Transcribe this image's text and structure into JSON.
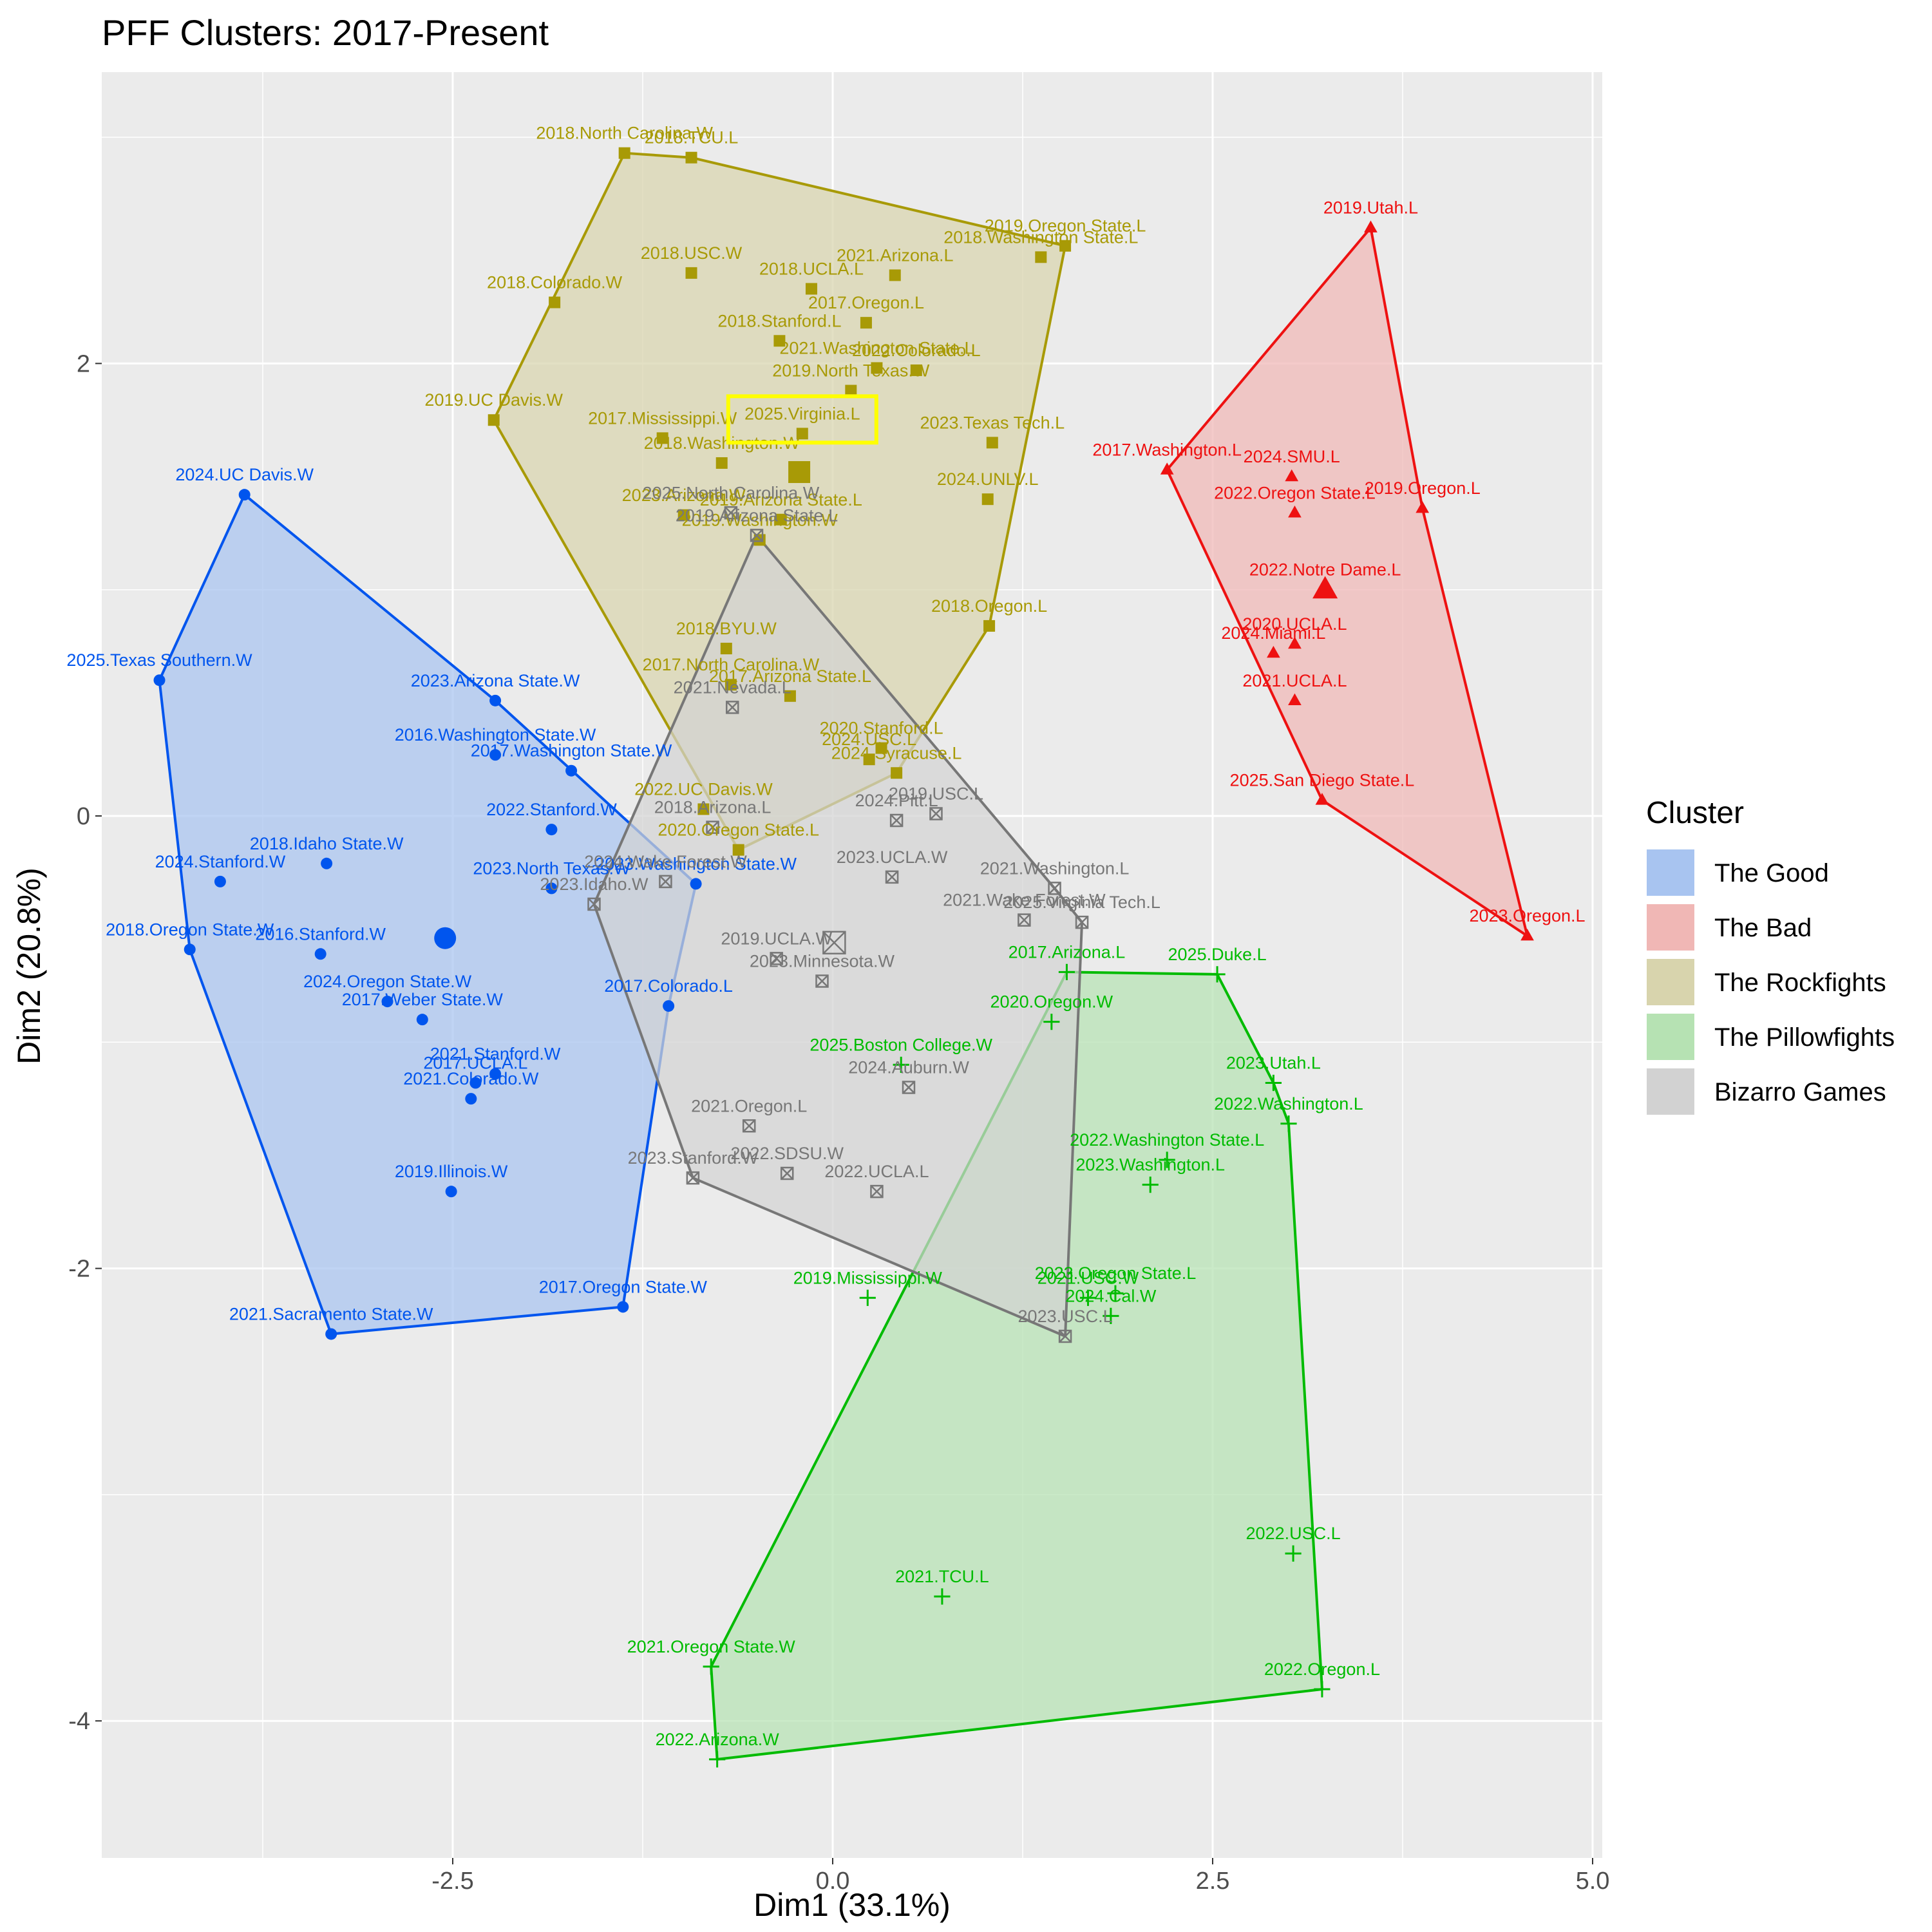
{
  "chart_data": {
    "type": "scatter",
    "title": "PFF Clusters: 2017-Present",
    "xlabel": "Dim1 (33.1%)",
    "ylabel": "Dim2 (20.8%)",
    "xlim": [
      -4.9,
      5.0
    ],
    "ylim": [
      -4.6,
      3.3
    ],
    "xticks": [
      -2.5,
      0.0,
      2.5,
      5.0
    ],
    "xtick_labels": [
      "-2.5",
      "0.0",
      "2.5",
      "5.0"
    ],
    "yticks": [
      -4,
      -2,
      0,
      2
    ],
    "ytick_labels": [
      "-4",
      "-2",
      "0",
      "2"
    ],
    "grid": true,
    "legend": {
      "title": "Cluster",
      "position": "right"
    },
    "highlight": {
      "label": "2025.Virginia.L",
      "color": "#ffff00"
    },
    "clusters": [
      {
        "name": "The Good",
        "color": "#0055ee",
        "fill": "#a8c4f0",
        "shape": "circle",
        "centroid": [
          -2.55,
          -0.54
        ],
        "hull": [
          "2024.UC Davis.W",
          "2023.Arizona State.W",
          "2023.Washington State.W",
          "2017.Colorado.L",
          "2017.Oregon State.W",
          "2021.Sacramento State.W",
          "2018.Oregon State.W",
          "2025.Texas Southern.W"
        ],
        "points": [
          {
            "label": "2024.UC Davis.W",
            "x": -3.87,
            "y": 1.42
          },
          {
            "label": "2025.Texas Southern.W",
            "x": -4.43,
            "y": 0.6
          },
          {
            "label": "2023.Arizona State.W",
            "x": -2.22,
            "y": 0.51
          },
          {
            "label": "2017.Washington State.W",
            "x": -1.72,
            "y": 0.2
          },
          {
            "label": "2016.Washington State.W",
            "x": -2.22,
            "y": 0.27
          },
          {
            "label": "2022.Stanford.W",
            "x": -1.85,
            "y": -0.06
          },
          {
            "label": "2018.Idaho State.W",
            "x": -3.33,
            "y": -0.21
          },
          {
            "label": "2024.Stanford.W",
            "x": -4.03,
            "y": -0.29
          },
          {
            "label": "2023.North Texas.W",
            "x": -1.85,
            "y": -0.32
          },
          {
            "label": "2023.Washington State.W",
            "x": -0.9,
            "y": -0.3
          },
          {
            "label": "2018.Oregon State.W",
            "x": -4.23,
            "y": -0.59
          },
          {
            "label": "2016.Stanford.W",
            "x": -3.37,
            "y": -0.61
          },
          {
            "label": "2024.Oregon State.W",
            "x": -2.93,
            "y": -0.82
          },
          {
            "label": "2017.Weber State.W",
            "x": -2.7,
            "y": -0.9
          },
          {
            "label": "2017.Colorado.L",
            "x": -1.08,
            "y": -0.84
          },
          {
            "label": "2021.Stanford.W",
            "x": -2.22,
            "y": -1.14
          },
          {
            "label": "2017.UCLA.L",
            "x": -2.35,
            "y": -1.18
          },
          {
            "label": "2021.Colorado.W",
            "x": -2.38,
            "y": -1.25
          },
          {
            "label": "2019.Illinois.W",
            "x": -2.51,
            "y": -1.66
          },
          {
            "label": "2017.Oregon State.W",
            "x": -1.38,
            "y": -2.17
          },
          {
            "label": "2021.Sacramento State.W",
            "x": -3.3,
            "y": -2.29
          }
        ]
      },
      {
        "name": "The Bad",
        "color": "#ee1111",
        "fill": "#f0b7b5",
        "shape": "triangle",
        "centroid": [
          3.24,
          1.0
        ],
        "hull": [
          "2019.Utah.L",
          "2019.Oregon.L",
          "2023.Oregon.L",
          "2025.San Diego State.L",
          "2017.Washington.L"
        ],
        "points": [
          {
            "label": "2019.Utah.L",
            "x": 3.54,
            "y": 2.6
          },
          {
            "label": "2017.Washington.L",
            "x": 2.2,
            "y": 1.53
          },
          {
            "label": "2024.SMU.L",
            "x": 3.02,
            "y": 1.5
          },
          {
            "label": "2022.Oregon State.L",
            "x": 3.04,
            "y": 1.34
          },
          {
            "label": "2019.Oregon.L",
            "x": 3.88,
            "y": 1.36
          },
          {
            "label": "2022.Notre Dame.L",
            "x": 3.24,
            "y": 1.0
          },
          {
            "label": "2020.UCLA.L",
            "x": 3.04,
            "y": 0.76
          },
          {
            "label": "2024.Miami.L",
            "x": 2.9,
            "y": 0.72
          },
          {
            "label": "2021.UCLA.L",
            "x": 3.04,
            "y": 0.51
          },
          {
            "label": "2025.San Diego State.L",
            "x": 3.22,
            "y": 0.07
          },
          {
            "label": "2023.Oregon.L",
            "x": 4.57,
            "y": -0.53
          }
        ]
      },
      {
        "name": "The Rockfights",
        "color": "#a89a06",
        "fill": "#d8d4ad",
        "shape": "square",
        "centroid": [
          -0.22,
          1.52
        ],
        "hull": [
          "2018.North Carolina.W",
          "2018.TCU.L",
          "2019.Oregon State.L",
          "2018.Oregon.L",
          "2024.Syracuse.L",
          "2020.Oregon State.L",
          "2019.UC Davis.W"
        ],
        "points": [
          {
            "label": "2018.North Carolina.W",
            "x": -1.37,
            "y": 2.93
          },
          {
            "label": "2018.TCU.L",
            "x": -0.93,
            "y": 2.91
          },
          {
            "label": "2019.Oregon State.L",
            "x": 1.53,
            "y": 2.52
          },
          {
            "label": "2018.Washington State.L",
            "x": 1.37,
            "y": 2.47
          },
          {
            "label": "2018.USC.W",
            "x": -0.93,
            "y": 2.4
          },
          {
            "label": "2021.Arizona.L",
            "x": 0.41,
            "y": 2.39
          },
          {
            "label": "2018.UCLA.L",
            "x": -0.14,
            "y": 2.33
          },
          {
            "label": "2018.Colorado.W",
            "x": -1.83,
            "y": 2.27
          },
          {
            "label": "2017.Oregon.L",
            "x": 0.22,
            "y": 2.18
          },
          {
            "label": "2018.Stanford.L",
            "x": -0.35,
            "y": 2.1
          },
          {
            "label": "2019.North Texas.W",
            "x": 0.12,
            "y": 1.88
          },
          {
            "label": "2022.Colorado.L",
            "x": 0.55,
            "y": 1.97
          },
          {
            "label": "2021.Washington State.L",
            "x": 0.29,
            "y": 1.98
          },
          {
            "label": "2019.UC Davis.W",
            "x": -2.23,
            "y": 1.75
          },
          {
            "label": "2025.Virginia.L",
            "x": -0.2,
            "y": 1.69
          },
          {
            "label": "2017.Mississippi.W",
            "x": -1.12,
            "y": 1.67
          },
          {
            "label": "2023.Texas Tech.L",
            "x": 1.05,
            "y": 1.65
          },
          {
            "label": "2018.Washington.W",
            "x": -0.73,
            "y": 1.56
          },
          {
            "label": "2024.UNLV.L",
            "x": 1.02,
            "y": 1.4
          },
          {
            "label": "2023.Arizona.W",
            "x": -0.98,
            "y": 1.33
          },
          {
            "label": "2019.Arizona State.L",
            "x": -0.34,
            "y": 1.31
          },
          {
            "label": "2019.Washington.W",
            "x": -0.48,
            "y": 1.22
          },
          {
            "label": "2018.Oregon.L",
            "x": 1.03,
            "y": 0.84
          },
          {
            "label": "2018.BYU.W",
            "x": -0.7,
            "y": 0.74
          },
          {
            "label": "2017.North Carolina.W",
            "x": -0.67,
            "y": 0.58
          },
          {
            "label": "2017.Arizona State.L",
            "x": -0.28,
            "y": 0.53
          },
          {
            "label": "2020.Stanford.L",
            "x": 0.32,
            "y": 0.3
          },
          {
            "label": "2024.Syracuse.L",
            "x": 0.42,
            "y": 0.19
          },
          {
            "label": "2024.USC.L",
            "x": 0.24,
            "y": 0.25
          },
          {
            "label": "2022.UC Davis.W",
            "x": -0.85,
            "y": 0.03
          },
          {
            "label": "2020.Oregon State.L",
            "x": -0.62,
            "y": -0.15
          }
        ]
      },
      {
        "name": "The Pillowfights",
        "color": "#00bb00",
        "fill": "#b6e2b3",
        "shape": "plus",
        "centroid": null,
        "hull": [
          "2017.Arizona.L",
          "2025.Duke.L",
          "2023.Utah.L",
          "2022.Washington.L",
          "2022.Oregon.L",
          "2022.Arizona.W",
          "2021.Oregon State.W"
        ],
        "points": [
          {
            "label": "2017.Arizona.L",
            "x": 1.54,
            "y": -0.69
          },
          {
            "label": "2025.Duke.L",
            "x": 2.53,
            "y": -0.7
          },
          {
            "label": "2020.Oregon.W",
            "x": 1.44,
            "y": -0.91
          },
          {
            "label": "2025.Boston College.W",
            "x": 0.45,
            "y": -1.1
          },
          {
            "label": "2023.Utah.L",
            "x": 2.9,
            "y": -1.18
          },
          {
            "label": "2022.Washington.L",
            "x": 3.0,
            "y": -1.36
          },
          {
            "label": "2022.Washington State.L",
            "x": 2.2,
            "y": -1.52
          },
          {
            "label": "2023.Washington.L",
            "x": 2.09,
            "y": -1.63
          },
          {
            "label": "2019.Mississippi.W",
            "x": 0.23,
            "y": -2.13
          },
          {
            "label": "2023.Oregon State.L",
            "x": 1.86,
            "y": -2.11
          },
          {
            "label": "2021.USC.W",
            "x": 1.68,
            "y": -2.13
          },
          {
            "label": "2024.Cal.W",
            "x": 1.83,
            "y": -2.21
          },
          {
            "label": "2022.USC.L",
            "x": 3.03,
            "y": -3.26
          },
          {
            "label": "2021.TCU.L",
            "x": 0.72,
            "y": -3.45
          },
          {
            "label": "2021.Oregon State.W",
            "x": -0.8,
            "y": -3.76
          },
          {
            "label": "2022.Oregon.L",
            "x": 3.22,
            "y": -3.86
          },
          {
            "label": "2022.Arizona.W",
            "x": -0.76,
            "y": -4.17
          }
        ]
      },
      {
        "name": "Bizarro Games",
        "color": "#777777",
        "fill": "#d2d2d2",
        "shape": "square-x",
        "centroid": [
          0.01,
          -0.56
        ],
        "hull": [
          "2019.Arizona State.L",
          "2021.Washington.L",
          "2025.Virginia Tech.L",
          "2023.USC.L",
          "2023.Stanford.W",
          "2023.Idaho.W"
        ],
        "points": [
          {
            "label": "2025.North Carolina.W",
            "x": -0.67,
            "y": 1.34
          },
          {
            "label": "2019.Arizona State.L",
            "x": -0.5,
            "y": 1.24
          },
          {
            "label": "2021.Nevada.L",
            "x": -0.66,
            "y": 0.48
          },
          {
            "label": "2019.USC.L",
            "x": 0.68,
            "y": 0.01
          },
          {
            "label": "2024.Pitt.L",
            "x": 0.42,
            "y": -0.02
          },
          {
            "label": "2018.Arizona.L",
            "x": -0.79,
            "y": -0.05
          },
          {
            "label": "2023.UCLA.W",
            "x": 0.39,
            "y": -0.27
          },
          {
            "label": "2024.Wake Forest.W",
            "x": -1.1,
            "y": -0.29
          },
          {
            "label": "2021.Washington.L",
            "x": 1.46,
            "y": -0.32
          },
          {
            "label": "2023.Idaho.W",
            "x": -1.57,
            "y": -0.39
          },
          {
            "label": "2025.Virginia Tech.L",
            "x": 1.64,
            "y": -0.47
          },
          {
            "label": "2021.Wake Forest.W",
            "x": 1.26,
            "y": -0.46
          },
          {
            "label": "2019.UCLA.W",
            "x": -0.37,
            "y": -0.63
          },
          {
            "label": "2023.Minnesota.W",
            "x": -0.07,
            "y": -0.73
          },
          {
            "label": "2024.Auburn.W",
            "x": 0.5,
            "y": -1.2
          },
          {
            "label": "2021.Oregon.L",
            "x": -0.55,
            "y": -1.37
          },
          {
            "label": "2022.SDSU.W",
            "x": -0.3,
            "y": -1.58
          },
          {
            "label": "2023.Stanford.W",
            "x": -0.92,
            "y": -1.6
          },
          {
            "label": "2022.UCLA.L",
            "x": 0.29,
            "y": -1.66
          },
          {
            "label": "2023.USC.L",
            "x": 1.53,
            "y": -2.3
          }
        ]
      }
    ]
  }
}
